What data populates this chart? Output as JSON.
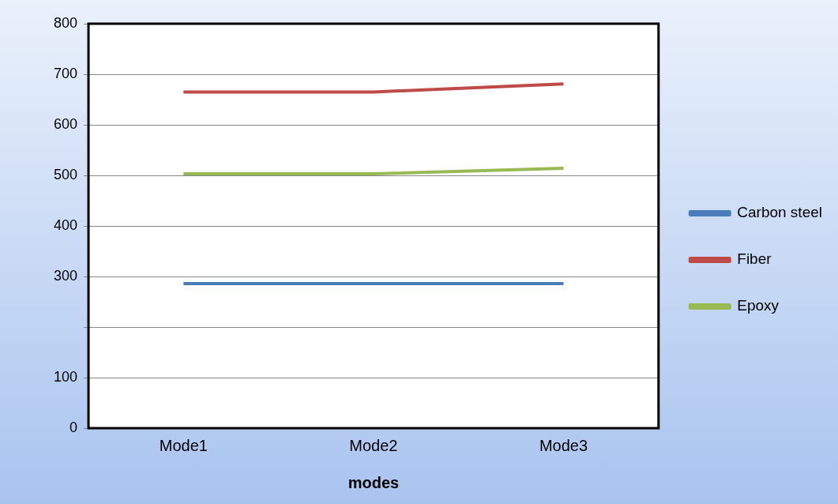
{
  "chart_data": {
    "type": "line",
    "xlabel": "modes",
    "categories": [
      "Mode1",
      "Mode2",
      "Mode3"
    ],
    "series": [
      {
        "name": "Carbon steel",
        "color": "#4a7ebb",
        "values": [
          286,
          286,
          286
        ]
      },
      {
        "name": "Fiber",
        "color": "#be4b48",
        "values": [
          665,
          665,
          681
        ]
      },
      {
        "name": "Epoxy",
        "color": "#98b954",
        "values": [
          503,
          503,
          514
        ]
      }
    ],
    "ylim": [
      0,
      800
    ],
    "yticks": [
      0,
      100,
      {
        "value": 200,
        "label": null
      },
      300,
      400,
      500,
      600,
      700,
      800
    ],
    "grid": "y",
    "legend": "right",
    "marker": "none",
    "line_style": "solid"
  }
}
